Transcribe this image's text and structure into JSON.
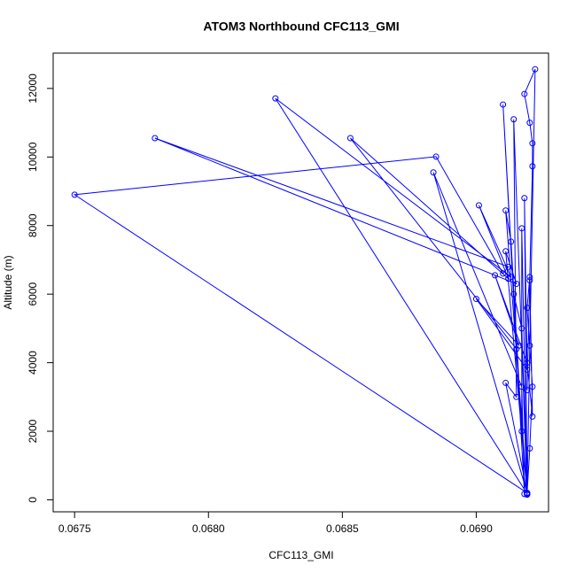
{
  "chart_data": {
    "type": "line",
    "title": "ATOM3 Northbound CFC113_GMI",
    "x_label": "CFC113_GMI",
    "y_label": "Altitude (m)",
    "series": [
      {
        "name": "CFC113_GMI",
        "color": "#0000ff",
        "x": [
          0.06919,
          0.0692,
          0.06921,
          0.06919,
          0.0692,
          0.06921,
          0.06921,
          0.0692,
          0.06918,
          0.06922,
          0.0692,
          0.06919,
          0.0675,
          0.06885,
          0.0691,
          0.06912,
          0.0678,
          0.06915,
          0.06911,
          0.06919,
          0.06825,
          0.06913,
          0.06901,
          0.06912,
          0.06853,
          0.06915,
          0.06919,
          0.06884,
          0.06917,
          0.06918,
          0.0691,
          0.06914,
          0.06917,
          0.06919,
          0.06914,
          0.06915,
          0.06911,
          0.06919,
          0.06911,
          0.06913,
          0.06917,
          0.06917,
          0.06919,
          0.06918,
          0.06919,
          0.069,
          0.06916,
          0.06907,
          0.06919,
          0.06921,
          0.0692,
          0.06919
        ],
        "values": [
          200,
          1500,
          3300,
          5600,
          6500,
          9730,
          10400,
          11000,
          11840,
          12560,
          4500,
          200,
          8900,
          10010,
          6600,
          6800,
          10550,
          6300,
          7250,
          180,
          11710,
          6500,
          8590,
          6450,
          10550,
          4400,
          200,
          9550,
          3300,
          170,
          11530,
          6000,
          5000,
          150,
          11100,
          3000,
          3410,
          200,
          8440,
          7530,
          2000,
          7920,
          160,
          8800,
          3800,
          5860,
          4500,
          6550,
          4000,
          2430,
          6400,
          3200
        ]
      }
    ],
    "xlim": [
      0.06742,
      0.06927
    ],
    "ylim": [
      -350,
      13030
    ],
    "xticks": [
      0.0675,
      {
        "value": 0.068,
        "label": "0.0680"
      },
      0.0685,
      {
        "value": 0.069,
        "label": "0.0690"
      }
    ],
    "yticks": [
      0,
      2000,
      4000,
      6000,
      8000,
      10000,
      12000
    ]
  }
}
